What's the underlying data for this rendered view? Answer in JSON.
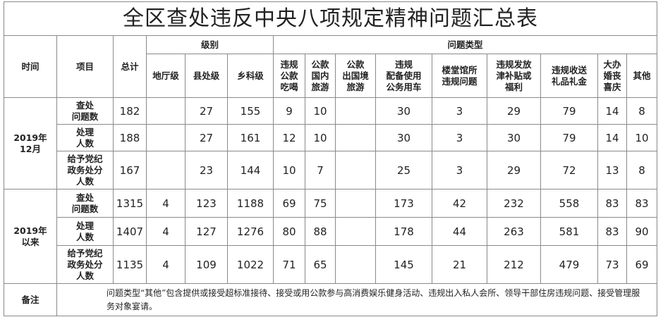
{
  "title": "全区查处违反中央八项规定精神问题汇总表",
  "headers": {
    "time": "时间",
    "item": "项目",
    "total": "总计",
    "level": "级别",
    "levels": [
      "地厅级",
      "县处级",
      "乡科级"
    ],
    "problem_type": "问题类型",
    "problems": [
      [
        "违规",
        "公款",
        "吃喝"
      ],
      [
        "公款",
        "国内",
        "旅游"
      ],
      [
        "公款",
        "出国境",
        "旅游"
      ],
      [
        "违规",
        "配备使用",
        "公务用车"
      ],
      [
        "楼堂馆所",
        "违规问题"
      ],
      [
        "违规发放",
        "津补贴或",
        "福利"
      ],
      [
        "违规收送",
        "礼品礼金"
      ],
      [
        "大办",
        "婚丧",
        "喜庆"
      ],
      [
        "其他"
      ]
    ]
  },
  "groups": [
    {
      "time": [
        "2019年",
        "12月"
      ],
      "rows": [
        {
          "item": [
            "查处",
            "问题数"
          ],
          "values": [
            182,
            null,
            27,
            155,
            9,
            10,
            null,
            30,
            3,
            29,
            79,
            14,
            8
          ]
        },
        {
          "item": [
            "处理",
            "人数"
          ],
          "values": [
            188,
            null,
            27,
            161,
            12,
            10,
            null,
            30,
            3,
            30,
            79,
            14,
            10
          ]
        },
        {
          "item": [
            "给予党纪",
            "政务处分",
            "人数"
          ],
          "values": [
            167,
            null,
            23,
            144,
            10,
            7,
            null,
            25,
            3,
            29,
            72,
            13,
            8
          ]
        }
      ]
    },
    {
      "time": [
        "2019年",
        "以来"
      ],
      "rows": [
        {
          "item": [
            "查处",
            "问题数"
          ],
          "values": [
            1315,
            4,
            123,
            1188,
            69,
            75,
            null,
            173,
            42,
            232,
            558,
            83,
            83
          ]
        },
        {
          "item": [
            "处理",
            "人数"
          ],
          "values": [
            1407,
            4,
            127,
            1276,
            80,
            88,
            null,
            178,
            44,
            263,
            581,
            83,
            90
          ]
        },
        {
          "item": [
            "给予党纪",
            "政务处分",
            "人数"
          ],
          "values": [
            1135,
            4,
            109,
            1022,
            71,
            65,
            null,
            145,
            21,
            212,
            479,
            73,
            69
          ]
        }
      ]
    }
  ],
  "note": {
    "label": "备注",
    "text": "问题类型“其他”包含提供或接受超标准接待、接受或用公款参与高消费娱乐健身活动、违规出入私人会所、领导干部住房违规问题、接受管理服务对象宴请。"
  }
}
